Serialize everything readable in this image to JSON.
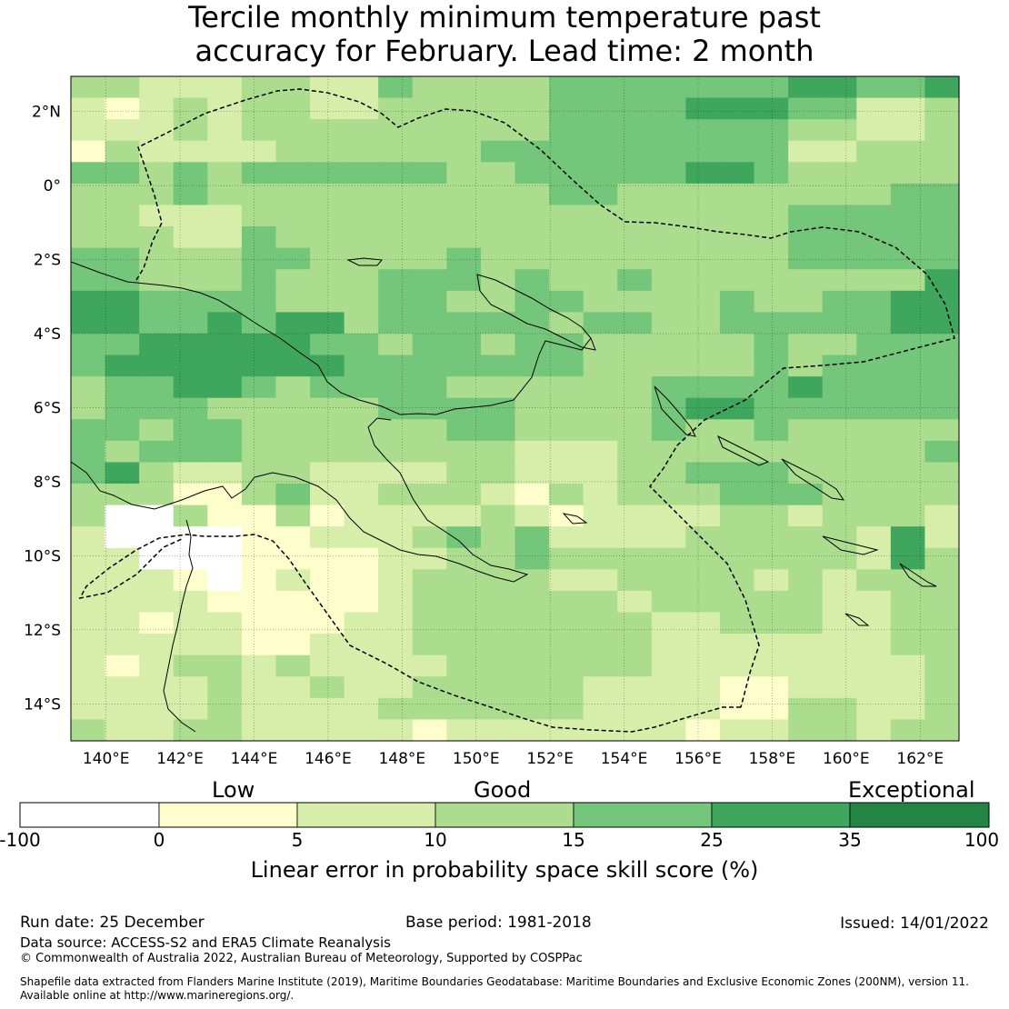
{
  "title_line1": "Tercile monthly minimum temperature past",
  "title_line2": "accuracy for February. Lead time: 2 month",
  "map": {
    "lat_labels": [
      "2°N",
      "0°",
      "2°S",
      "4°S",
      "6°S",
      "8°S",
      "10°S",
      "12°S",
      "14°S"
    ],
    "lon_labels": [
      "140°E",
      "142°E",
      "144°E",
      "146°E",
      "148°E",
      "150°E",
      "152°E",
      "154°E",
      "156°E",
      "158°E",
      "160°E",
      "162°E"
    ],
    "grid": [
      "33222332243333444444455445",
      "21232332233333444455544223",
      "22232333333333444444433223",
      "13222233333344444444422333",
      "44343444444334444455433333",
      "33343333333333443333333344",
      "33222333333333333333344444",
      "33322433333333333333344444",
      "44333443333433333333344444",
      "44333433344434334333333335",
      "55444433344334433334334455",
      "55445455344444344334444455",
      "44555554434434433333433444",
      "45555555444444433333434444",
      "34455434444333333444454444",
      "34443333344443333455444444",
      "44344333333443333433433333",
      "43444333333332223333333334",
      "45322332222332223344433333",
      "33311342233321323334443333",
      "3003113122223212222332333",
      "20000112223434222233333252",
      "22000111122334333333333253",
      "22210121123333223333232333",
      "22221111123333332333332233",
      "22122111223333333223332233",
      "22222112223333333222222233",
      "21233232222333333222222223",
      "22223223223333322221122223",
      "22223222233333322221133223",
      "32233222221222222212233233"
    ],
    "palette": [
      "#ffffff",
      "#fefecd",
      "#d7edaa",
      "#acdc8d",
      "#73c67a",
      "#3ea75d",
      "#238543"
    ]
  },
  "colorbar": {
    "low_label": "Low",
    "good_label": "Good",
    "exceptional_label": "Exceptional",
    "ticks": [
      "-100",
      "0",
      "5",
      "10",
      "15",
      "25",
      "35",
      "100"
    ],
    "colors": [
      "#ffffff",
      "#fefecd",
      "#d7edaa",
      "#acdc8d",
      "#73c67a",
      "#3ea75d",
      "#238543"
    ],
    "label": "Linear error in probability space skill score (%)"
  },
  "footer": {
    "run_date": "Run date: 25 December",
    "base_period": "Base period: 1981-2018",
    "issued": "Issued: 14/01/2022",
    "data_source": "Data source: ACCESS-S2 and ERA5 Climate Reanalysis",
    "copyright": "© Commonwealth of Australia 2022, Australian Bureau of Meteorology, Supported by COSPPac",
    "shapefile_1": "Shapefile data extracted from Flanders Marine Institute (2019), Maritime Boundaries Geodatabase: Maritime Boundaries and Exclusive Economic Zones (200NM), version 11.",
    "shapefile_2": "Available online at http://www.marineregions.org/."
  }
}
